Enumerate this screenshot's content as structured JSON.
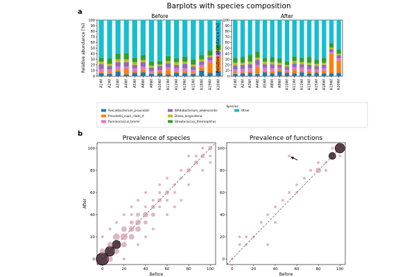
{
  "figure": {
    "panel_a_letter": "a",
    "panel_b_letter": "b",
    "panel_a_title": "Barplots with species composition",
    "legend_title": "Species"
  },
  "colors": {
    "Faecalibacterium_prausnitzii": "#1f77b4",
    "Prevotella_copri_clade_A": "#ff7f0e",
    "Ruminococcus_bromii": "#e377c2",
    "Bifidobacterium_adolescentis": "#9467bd",
    "Dorea_longicatena": "#bcbd22",
    "Streptococcus_thermophilus": "#2ca02c",
    "Other": "#17becf",
    "scatter_point": "#c97b94",
    "scatter_dark": "#3b1f2b",
    "diagonal": "#555555"
  },
  "chart_data": [
    {
      "type": "bar",
      "stacked": true,
      "title": "Before",
      "ylabel": "Relative abundance [%]",
      "ylim": [
        0,
        100
      ],
      "yticks": [
        0,
        10,
        20,
        30,
        40,
        50,
        60,
        70,
        80,
        90,
        100
      ],
      "categories": [
        "A1WI",
        "A2WI",
        "A3WI",
        "A4WI",
        "A5WI",
        "A8WI",
        "A9WI",
        "A10WI",
        "A11WI",
        "A12WI",
        "A13WI",
        "A15WI",
        "A18WI",
        "A19WI",
        "A20WI"
      ],
      "series": [
        {
          "name": "Faecalibacterium_prausnitzii",
          "values": [
            5,
            4,
            8,
            3,
            6,
            7,
            4,
            5,
            3,
            6,
            5,
            4,
            10,
            6,
            9
          ]
        },
        {
          "name": "Prevotella_copri_clade_A",
          "values": [
            2,
            3,
            4,
            10,
            2,
            5,
            1,
            3,
            8,
            2,
            4,
            3,
            5,
            18,
            25
          ]
        },
        {
          "name": "Ruminococcus_bromii",
          "values": [
            6,
            5,
            5,
            4,
            6,
            5,
            4,
            3,
            5,
            6,
            5,
            4,
            5,
            4,
            4
          ]
        },
        {
          "name": "Bifidobacterium_adolescentis",
          "values": [
            8,
            6,
            8,
            8,
            6,
            8,
            6,
            7,
            7,
            6,
            8,
            6,
            6,
            6,
            6
          ]
        },
        {
          "name": "Dorea_longicatena",
          "values": [
            5,
            4,
            5,
            5,
            5,
            4,
            4,
            3,
            4,
            5,
            4,
            4,
            4,
            3,
            3
          ]
        },
        {
          "name": "Streptococcus_thermophilus",
          "values": [
            7,
            10,
            10,
            11,
            8,
            9,
            7,
            6,
            9,
            7,
            9,
            9,
            8,
            9,
            9
          ]
        },
        {
          "name": "Other",
          "values": [
            67,
            68,
            60,
            59,
            67,
            62,
            74,
            73,
            64,
            68,
            65,
            70,
            62,
            54,
            44
          ]
        }
      ]
    },
    {
      "type": "bar",
      "stacked": true,
      "title": "After",
      "ylabel": "Relative abundance [%]",
      "ylim": [
        0,
        100
      ],
      "yticks": [
        0,
        10,
        20,
        30,
        40,
        50,
        60,
        70,
        80,
        90,
        100
      ],
      "categories": [
        "A1WI",
        "A2WI",
        "A3WI",
        "A4WI",
        "A5WI",
        "A8WI",
        "A9WI",
        "A10WI",
        "A11WI",
        "A12WI",
        "A13WI",
        "A15WI",
        "A18WI",
        "A19WI",
        "A20WI"
      ],
      "series": [
        {
          "name": "Faecalibacterium_prausnitzii",
          "values": [
            4,
            5,
            6,
            4,
            7,
            5,
            8,
            6,
            5,
            7,
            5,
            6,
            5,
            5,
            6
          ]
        },
        {
          "name": "Prevotella_copri_clade_A",
          "values": [
            3,
            2,
            3,
            12,
            2,
            4,
            3,
            2,
            6,
            3,
            4,
            2,
            5,
            35,
            22
          ]
        },
        {
          "name": "Ruminococcus_bromii",
          "values": [
            5,
            6,
            5,
            4,
            6,
            5,
            4,
            3,
            5,
            5,
            4,
            4,
            4,
            3,
            4
          ]
        },
        {
          "name": "Bifidobacterium_adolescentis",
          "values": [
            7,
            7,
            7,
            9,
            6,
            7,
            5,
            6,
            7,
            6,
            7,
            6,
            6,
            5,
            5
          ]
        },
        {
          "name": "Dorea_longicatena",
          "values": [
            5,
            4,
            5,
            4,
            5,
            4,
            4,
            3,
            4,
            4,
            4,
            4,
            4,
            3,
            3
          ]
        },
        {
          "name": "Streptococcus_thermophilus",
          "values": [
            9,
            10,
            12,
            11,
            7,
            9,
            8,
            6,
            8,
            8,
            10,
            8,
            9,
            8,
            8
          ]
        },
        {
          "name": "Other",
          "values": [
            67,
            66,
            62,
            56,
            67,
            66,
            68,
            74,
            65,
            67,
            66,
            70,
            67,
            41,
            52
          ]
        }
      ]
    },
    {
      "type": "scatter",
      "title": "Prevalence of species",
      "xlabel": "Before",
      "ylabel": "After",
      "xlim": [
        -5,
        105
      ],
      "ylim": [
        -5,
        105
      ],
      "xticks": [
        0,
        20,
        40,
        60,
        80,
        100
      ],
      "yticks": [
        0,
        20,
        40,
        60,
        80,
        100
      ],
      "diagonal": true,
      "points": [
        {
          "x": 0,
          "y": 0,
          "size": 9,
          "dark": true
        },
        {
          "x": 7,
          "y": 7,
          "size": 7,
          "dark": true
        },
        {
          "x": 13,
          "y": 13,
          "size": 6,
          "dark": true
        },
        {
          "x": 0,
          "y": 7,
          "size": 4
        },
        {
          "x": 7,
          "y": 0,
          "size": 4
        },
        {
          "x": 7,
          "y": 13,
          "size": 4
        },
        {
          "x": 13,
          "y": 7,
          "size": 4
        },
        {
          "x": 13,
          "y": 20,
          "size": 5
        },
        {
          "x": 20,
          "y": 13,
          "size": 4
        },
        {
          "x": 20,
          "y": 20,
          "size": 5
        },
        {
          "x": 20,
          "y": 27,
          "size": 4
        },
        {
          "x": 27,
          "y": 20,
          "size": 4
        },
        {
          "x": 27,
          "y": 27,
          "size": 4
        },
        {
          "x": 33,
          "y": 27,
          "size": 4
        },
        {
          "x": 33,
          "y": 33,
          "size": 4
        },
        {
          "x": 27,
          "y": 33,
          "size": 3
        },
        {
          "x": 40,
          "y": 33,
          "size": 3
        },
        {
          "x": 40,
          "y": 40,
          "size": 4
        },
        {
          "x": 33,
          "y": 40,
          "size": 3
        },
        {
          "x": 47,
          "y": 40,
          "size": 3
        },
        {
          "x": 47,
          "y": 47,
          "size": 3
        },
        {
          "x": 53,
          "y": 53,
          "size": 3
        },
        {
          "x": 60,
          "y": 53,
          "size": 2
        },
        {
          "x": 53,
          "y": 60,
          "size": 2
        },
        {
          "x": 67,
          "y": 67,
          "size": 2
        },
        {
          "x": 73,
          "y": 73,
          "size": 2
        },
        {
          "x": 80,
          "y": 80,
          "size": 3
        },
        {
          "x": 87,
          "y": 87,
          "size": 3
        },
        {
          "x": 93,
          "y": 93,
          "size": 3
        },
        {
          "x": 100,
          "y": 100,
          "size": 3
        },
        {
          "x": 93,
          "y": 100,
          "size": 2
        },
        {
          "x": 100,
          "y": 93,
          "size": 2
        },
        {
          "x": 87,
          "y": 93,
          "size": 2
        },
        {
          "x": 80,
          "y": 93,
          "size": 2
        },
        {
          "x": 73,
          "y": 80,
          "size": 2
        },
        {
          "x": 60,
          "y": 73,
          "size": 2
        },
        {
          "x": 53,
          "y": 67,
          "size": 2
        },
        {
          "x": 40,
          "y": 60,
          "size": 2
        },
        {
          "x": 33,
          "y": 53,
          "size": 2
        },
        {
          "x": 27,
          "y": 47,
          "size": 2
        },
        {
          "x": 20,
          "y": 40,
          "size": 2
        },
        {
          "x": 13,
          "y": 33,
          "size": 2
        },
        {
          "x": 7,
          "y": 27,
          "size": 2
        },
        {
          "x": 0,
          "y": 20,
          "size": 2
        },
        {
          "x": 20,
          "y": 0,
          "size": 2
        },
        {
          "x": 33,
          "y": 13,
          "size": 2
        },
        {
          "x": 40,
          "y": 20,
          "size": 2
        },
        {
          "x": 47,
          "y": 27,
          "size": 2
        },
        {
          "x": 60,
          "y": 40,
          "size": 2
        },
        {
          "x": 67,
          "y": 47,
          "size": 2
        },
        {
          "x": 73,
          "y": 53,
          "size": 2
        },
        {
          "x": 80,
          "y": 67,
          "size": 2
        },
        {
          "x": 93,
          "y": 80,
          "size": 2
        },
        {
          "x": 100,
          "y": 87,
          "size": 2
        },
        {
          "x": 60,
          "y": 60,
          "size": 3
        },
        {
          "x": 67,
          "y": 60,
          "size": 2
        },
        {
          "x": 47,
          "y": 53,
          "size": 2
        },
        {
          "x": 40,
          "y": 47,
          "size": 2
        },
        {
          "x": 53,
          "y": 47,
          "size": 2
        },
        {
          "x": 27,
          "y": 40,
          "size": 2
        }
      ]
    },
    {
      "type": "scatter",
      "title": "Prevalence of functions",
      "xlabel": "Before",
      "ylabel": "",
      "xlim": [
        -5,
        105
      ],
      "ylim": [
        -5,
        105
      ],
      "xticks": [
        0,
        20,
        40,
        60,
        80,
        100
      ],
      "yticks": [
        0,
        20,
        40,
        60,
        80,
        100
      ],
      "diagonal": true,
      "annotation": {
        "type": "arrow",
        "target_x": 53,
        "target_y": 93
      },
      "points": [
        {
          "x": 100,
          "y": 100,
          "size": 7,
          "dark": true
        },
        {
          "x": 93,
          "y": 93,
          "size": 5,
          "dark": true
        },
        {
          "x": 80,
          "y": 80,
          "size": 4
        },
        {
          "x": 0,
          "y": 0,
          "size": 2
        },
        {
          "x": 7,
          "y": 13,
          "size": 2
        },
        {
          "x": 13,
          "y": 13,
          "size": 2
        },
        {
          "x": 13,
          "y": 20,
          "size": 2
        },
        {
          "x": 7,
          "y": 20,
          "size": 2
        },
        {
          "x": 20,
          "y": 20,
          "size": 2
        },
        {
          "x": 27,
          "y": 33,
          "size": 2
        },
        {
          "x": 33,
          "y": 40,
          "size": 2
        },
        {
          "x": 40,
          "y": 47,
          "size": 2
        },
        {
          "x": 47,
          "y": 53,
          "size": 2
        },
        {
          "x": 53,
          "y": 60,
          "size": 2
        },
        {
          "x": 60,
          "y": 67,
          "size": 2
        },
        {
          "x": 67,
          "y": 73,
          "size": 2
        },
        {
          "x": 73,
          "y": 80,
          "size": 2
        },
        {
          "x": 87,
          "y": 87,
          "size": 2
        },
        {
          "x": 93,
          "y": 100,
          "size": 2
        },
        {
          "x": 100,
          "y": 93,
          "size": 2
        },
        {
          "x": 53,
          "y": 93,
          "size": 2
        },
        {
          "x": 33,
          "y": 13,
          "size": 2
        },
        {
          "x": 40,
          "y": 33,
          "size": 2
        },
        {
          "x": 60,
          "y": 60,
          "size": 2
        },
        {
          "x": 80,
          "y": 87,
          "size": 2
        },
        {
          "x": 87,
          "y": 80,
          "size": 2
        }
      ]
    }
  ],
  "legend": {
    "entries": [
      {
        "label": "Faecalibacterium_prausnitzii",
        "color": "#1f77b4"
      },
      {
        "label": "Prevotella_copri_clade_A",
        "color": "#ff7f0e"
      },
      {
        "label": "Ruminococcus_bromii",
        "color": "#e377c2"
      },
      {
        "label": "Bifidobacterium_adolescentis",
        "color": "#9467bd"
      },
      {
        "label": "Dorea_longicatena",
        "color": "#bcbd22"
      },
      {
        "label": "Streptococcus_thermophilus",
        "color": "#2ca02c"
      },
      {
        "label": "Other",
        "color": "#17becf"
      }
    ]
  }
}
